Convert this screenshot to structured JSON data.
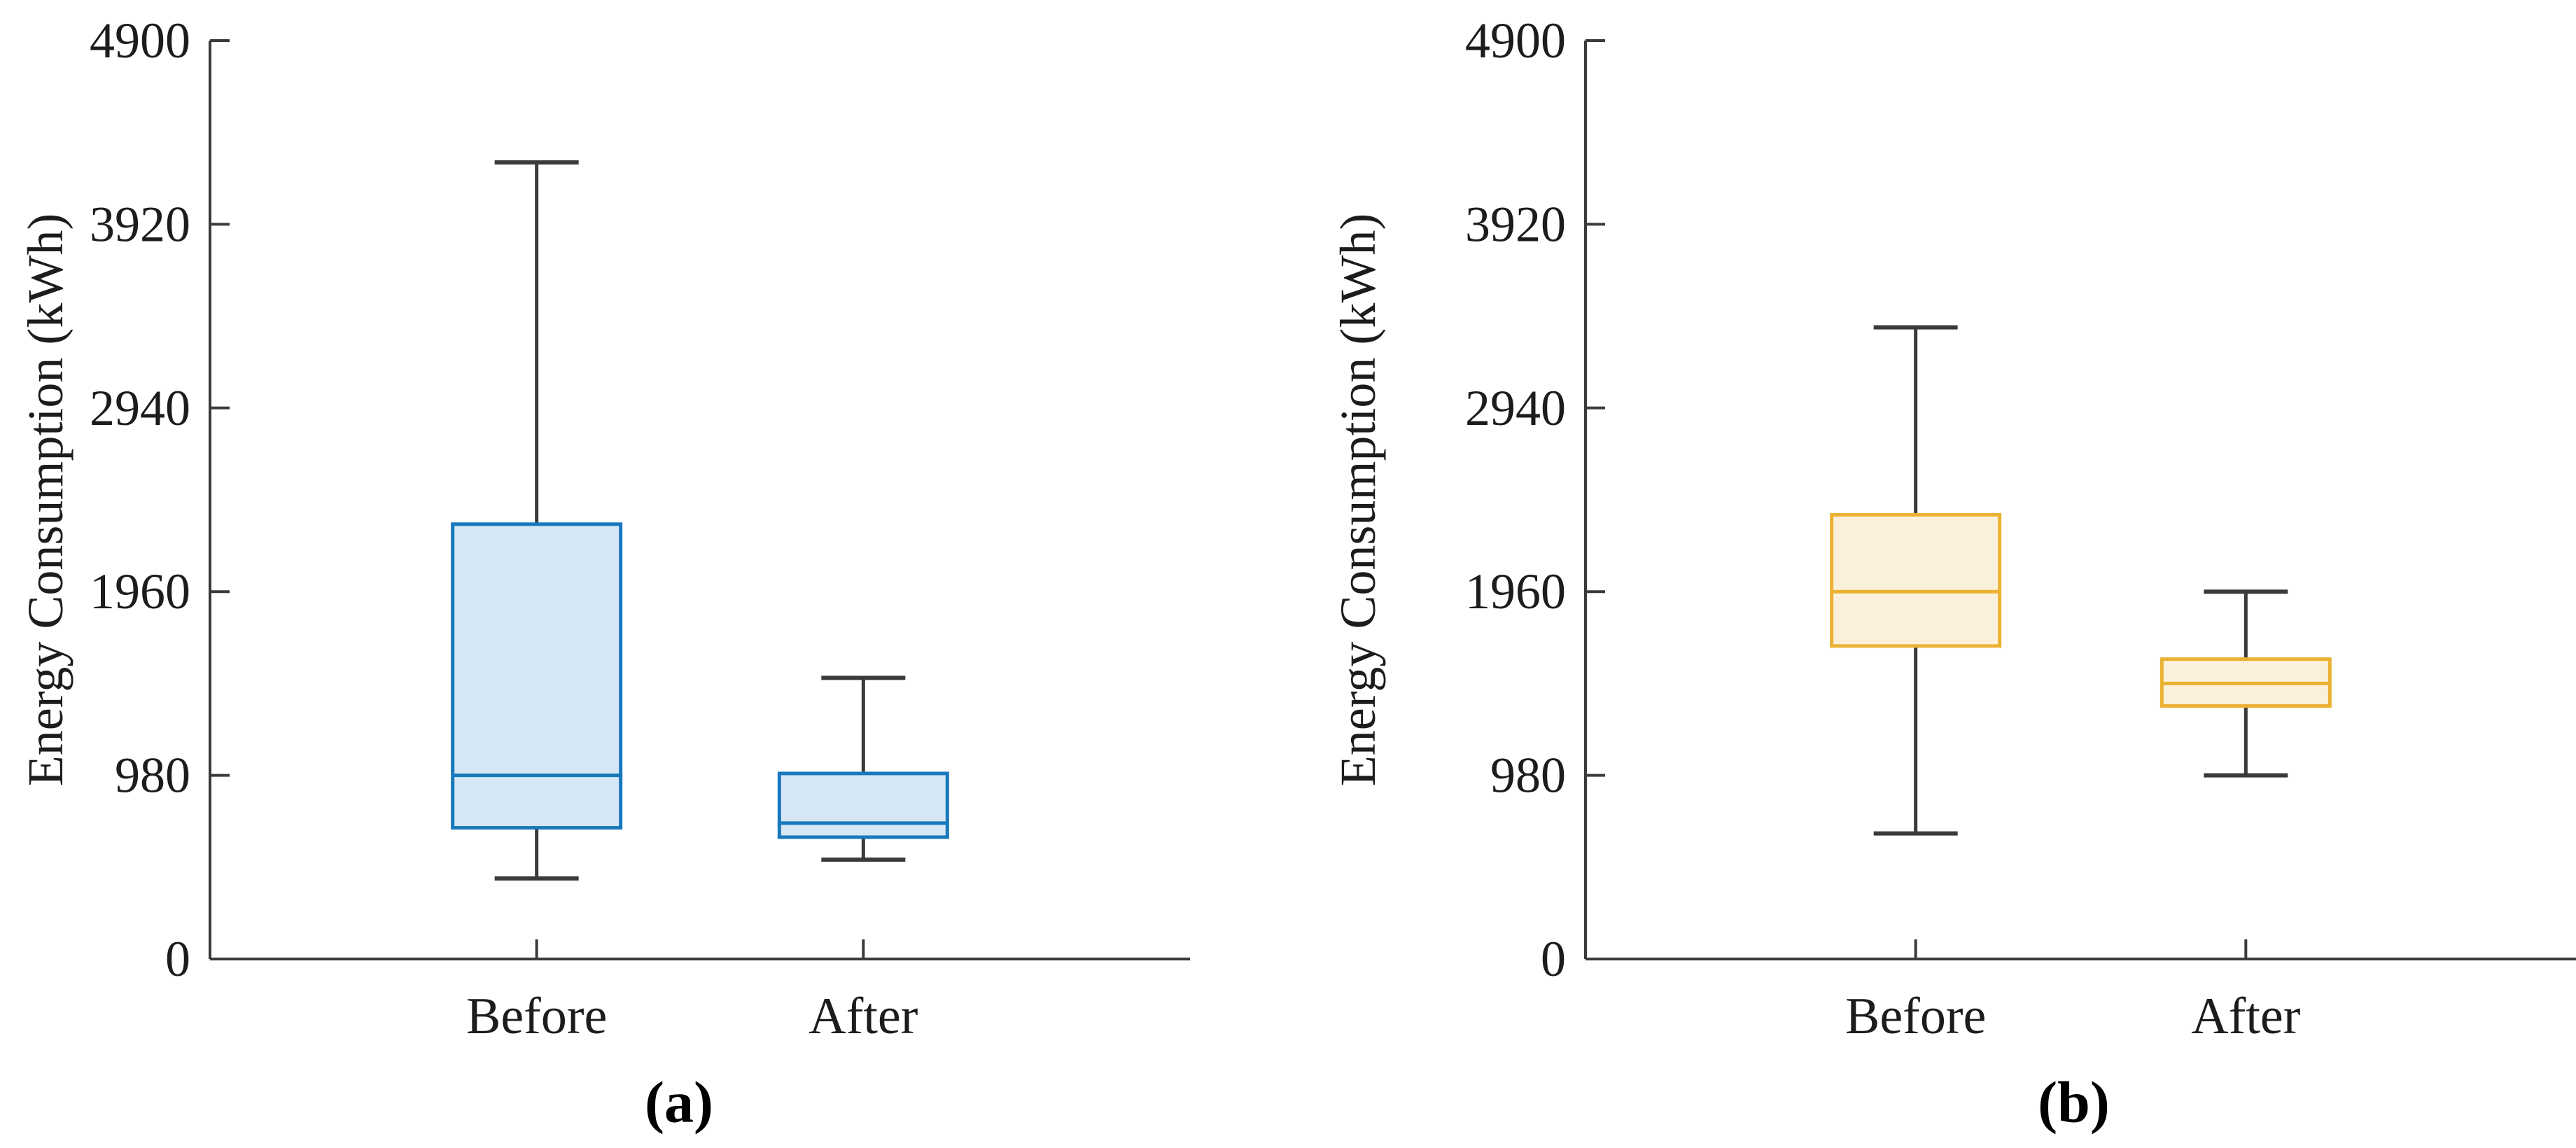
{
  "figure": {
    "background": "#ffffff",
    "text_color": "#1c1c1c",
    "axis_color": "#3a3a3a",
    "ylabel": "Energy Consumption (kWh)",
    "categories": [
      "Before",
      "After"
    ]
  },
  "chart_data": [
    {
      "type": "boxplot",
      "panel": "a",
      "caption": "(a)",
      "ylabel": "Energy Consumption (kWh)",
      "categories": [
        "Before",
        "After"
      ],
      "ylim": [
        0,
        4900
      ],
      "yticks": [
        0,
        980,
        1960,
        2940,
        3920,
        4900
      ],
      "grid": false,
      "series": [
        {
          "name": "Before",
          "whislo": 430,
          "q1": 700,
          "med": 980,
          "q3": 2320,
          "whishi": 4250
        },
        {
          "name": "After",
          "whislo": 530,
          "q1": 650,
          "med": 725,
          "q3": 990,
          "whishi": 1500
        }
      ],
      "style": {
        "edge": "#1878bc",
        "fill": "#d5e7f4",
        "whisker": "#3a3a3a"
      }
    },
    {
      "type": "boxplot",
      "panel": "b",
      "caption": "(b)",
      "ylabel": "Energy Consumption (kWh)",
      "categories": [
        "Before",
        "After"
      ],
      "ylim": [
        0,
        4900
      ],
      "yticks": [
        0,
        980,
        1960,
        2940,
        3920,
        4900
      ],
      "grid": false,
      "series": [
        {
          "name": "Before",
          "whislo": 670,
          "q1": 1670,
          "med": 1960,
          "q3": 2370,
          "whishi": 3370
        },
        {
          "name": "After",
          "whislo": 980,
          "q1": 1350,
          "med": 1470,
          "q3": 1600,
          "whishi": 1960
        }
      ],
      "style": {
        "edge": "#ebb232",
        "fill": "#fbf1da",
        "whisker": "#3a3a3a"
      }
    }
  ]
}
